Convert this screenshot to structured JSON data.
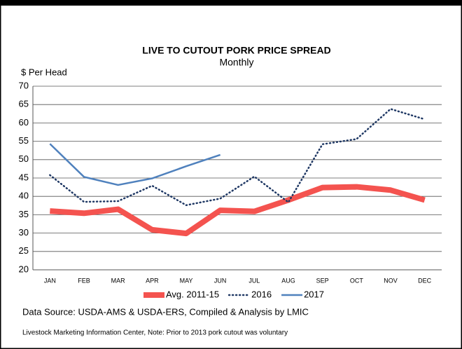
{
  "chart_data": {
    "type": "line",
    "title": "LIVE TO CUTOUT PORK PRICE SPREAD",
    "subtitle": "Monthly",
    "y_label": "$ Per Head",
    "categories": [
      "JAN",
      "FEB",
      "MAR",
      "APR",
      "MAY",
      "JUN",
      "JUL",
      "AUG",
      "SEP",
      "OCT",
      "NOV",
      "DEC"
    ],
    "series": [
      {
        "name": "Avg. 2011-15",
        "color": "#f4534f",
        "style": "solid",
        "width": 8,
        "values": [
          36,
          35.4,
          36.5,
          30.9,
          29.9,
          36.2,
          35.9,
          39,
          42.4,
          42.6,
          41.7,
          39
        ]
      },
      {
        "name": "2016",
        "color": "#1f3864",
        "style": "dotted",
        "width": 2.5,
        "values": [
          45.8,
          38.5,
          38.7,
          42.9,
          37.6,
          39.4,
          45.4,
          38.4,
          54.2,
          55.6,
          63.8,
          61
        ]
      },
      {
        "name": "2017",
        "color": "#4f81bd",
        "style": "solid",
        "width": 2.5,
        "values": [
          54.3,
          45.3,
          43.1,
          44.9,
          48.2,
          51.3,
          null,
          null,
          null,
          null,
          null,
          null
        ]
      }
    ],
    "ylim": [
      20,
      70
    ],
    "yticks": [
      20,
      25,
      30,
      35,
      40,
      45,
      50,
      55,
      60,
      65,
      70
    ],
    "grid": true,
    "legend": "bottom",
    "notes": [
      "Data Source:  USDA-AMS & USDA-ERS, Compiled & Analysis by LMIC",
      "Livestock Marketing Information Center,  Note: Prior to 2013 pork cutout was voluntary"
    ]
  }
}
